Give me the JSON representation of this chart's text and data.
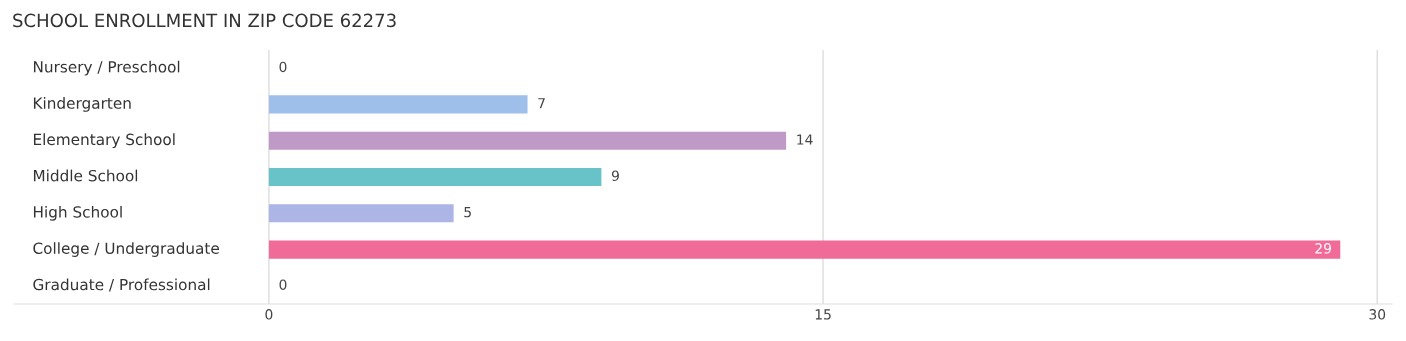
{
  "chart_data": {
    "type": "bar",
    "orientation": "horizontal",
    "title": "SCHOOL ENROLLMENT IN ZIP CODE 62273",
    "categories": [
      "Nursery / Preschool",
      "Kindergarten",
      "Elementary School",
      "Middle School",
      "High School",
      "College / Undergraduate",
      "Graduate / Professional"
    ],
    "values": [
      0,
      7,
      14,
      9,
      5,
      29,
      0
    ],
    "colors": [
      "#f4b3b3",
      "#9dbfe9",
      "#c09ac6",
      "#68c3c9",
      "#adb4e6",
      "#f06b97",
      "#f9c99a"
    ],
    "xlim": [
      -6.9,
      30.4
    ],
    "xticks": [
      0,
      15,
      30
    ],
    "grid": "x",
    "data_labels": true
  }
}
